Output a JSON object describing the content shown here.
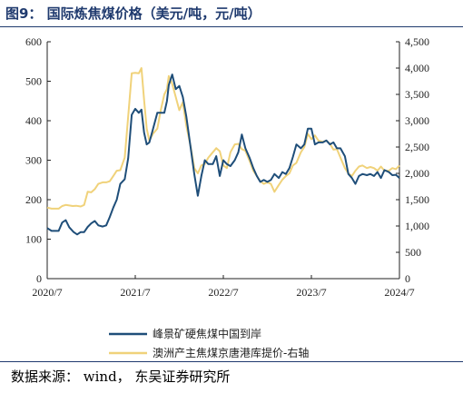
{
  "header": {
    "title": "图9：  国际炼焦煤价格（美元/吨，元/吨）"
  },
  "footer": {
    "source": "数据来源：  wind，  东吴证券研究所"
  },
  "chart_data": {
    "type": "line",
    "x_ticks": [
      "2020/7",
      "2021/7",
      "2022/7",
      "2023/7",
      "2024/7"
    ],
    "x_range": [
      2020.5,
      2024.5
    ],
    "y_left": {
      "ticks": [
        "0",
        "100",
        "200",
        "300",
        "400",
        "500",
        "600"
      ],
      "range": [
        0,
        600
      ]
    },
    "y_right": {
      "ticks": [
        "0",
        "500",
        "1,000",
        "1,500",
        "2,000",
        "2,500",
        "3,000",
        "3,500",
        "4,000",
        "4,500"
      ],
      "range": [
        0,
        4500
      ]
    },
    "grid": false,
    "legend_position": "bottom",
    "series": [
      {
        "name": "峰景矿硬焦煤中国到岸",
        "axis": "left",
        "color": "#1f4e79",
        "points": [
          [
            2020.5,
            128
          ],
          [
            2020.55,
            121
          ],
          [
            2020.63,
            121
          ],
          [
            2020.67,
            142
          ],
          [
            2020.71,
            148
          ],
          [
            2020.75,
            130
          ],
          [
            2020.8,
            118
          ],
          [
            2020.84,
            112
          ],
          [
            2020.88,
            118
          ],
          [
            2020.92,
            118
          ],
          [
            2020.96,
            131
          ],
          [
            2021.0,
            140
          ],
          [
            2021.04,
            146
          ],
          [
            2021.08,
            135
          ],
          [
            2021.13,
            132
          ],
          [
            2021.17,
            135
          ],
          [
            2021.21,
            156
          ],
          [
            2021.25,
            180
          ],
          [
            2021.29,
            200
          ],
          [
            2021.33,
            240
          ],
          [
            2021.38,
            252
          ],
          [
            2021.42,
            305
          ],
          [
            2021.46,
            415
          ],
          [
            2021.5,
            430
          ],
          [
            2021.54,
            420
          ],
          [
            2021.57,
            428
          ],
          [
            2021.6,
            370
          ],
          [
            2021.63,
            340
          ],
          [
            2021.66,
            345
          ],
          [
            2021.7,
            378
          ],
          [
            2021.75,
            420
          ],
          [
            2021.79,
            420
          ],
          [
            2021.83,
            420
          ],
          [
            2021.86,
            450
          ],
          [
            2021.88,
            490
          ],
          [
            2021.92,
            517
          ],
          [
            2021.96,
            480
          ],
          [
            2022.0,
            488
          ],
          [
            2022.04,
            460
          ],
          [
            2022.08,
            410
          ],
          [
            2022.13,
            330
          ],
          [
            2022.17,
            265
          ],
          [
            2022.21,
            210
          ],
          [
            2022.25,
            260
          ],
          [
            2022.29,
            300
          ],
          [
            2022.33,
            290
          ],
          [
            2022.38,
            290
          ],
          [
            2022.42,
            310
          ],
          [
            2022.46,
            260
          ],
          [
            2022.5,
            300
          ],
          [
            2022.54,
            290
          ],
          [
            2022.58,
            285
          ],
          [
            2022.63,
            300
          ],
          [
            2022.67,
            320
          ],
          [
            2022.71,
            365
          ],
          [
            2022.75,
            330
          ],
          [
            2022.8,
            305
          ],
          [
            2022.84,
            280
          ],
          [
            2022.88,
            260
          ],
          [
            2022.92,
            245
          ],
          [
            2022.96,
            250
          ],
          [
            2023.0,
            245
          ],
          [
            2023.04,
            250
          ],
          [
            2023.08,
            265
          ],
          [
            2023.13,
            255
          ],
          [
            2023.17,
            270
          ],
          [
            2023.21,
            265
          ],
          [
            2023.25,
            280
          ],
          [
            2023.29,
            308
          ],
          [
            2023.33,
            340
          ],
          [
            2023.38,
            330
          ],
          [
            2023.42,
            340
          ],
          [
            2023.46,
            380
          ],
          [
            2023.5,
            380
          ],
          [
            2023.54,
            340
          ],
          [
            2023.58,
            345
          ],
          [
            2023.63,
            345
          ],
          [
            2023.67,
            350
          ],
          [
            2023.71,
            340
          ],
          [
            2023.75,
            345
          ],
          [
            2023.79,
            330
          ],
          [
            2023.83,
            330
          ],
          [
            2023.88,
            310
          ],
          [
            2023.92,
            265
          ],
          [
            2023.96,
            255
          ],
          [
            2024.0,
            240
          ],
          [
            2024.04,
            260
          ],
          [
            2024.08,
            265
          ],
          [
            2024.13,
            262
          ],
          [
            2024.17,
            265
          ],
          [
            2024.21,
            260
          ],
          [
            2024.25,
            270
          ],
          [
            2024.29,
            255
          ],
          [
            2024.33,
            275
          ],
          [
            2024.38,
            270
          ],
          [
            2024.42,
            262
          ],
          [
            2024.46,
            263
          ],
          [
            2024.5,
            255
          ]
        ]
      },
      {
        "name": "澳洲产主焦煤京唐港库提价-右轴",
        "axis": "right",
        "color": "#f0d27a",
        "points": [
          [
            2020.5,
            1350
          ],
          [
            2020.55,
            1330
          ],
          [
            2020.63,
            1330
          ],
          [
            2020.67,
            1380
          ],
          [
            2020.71,
            1400
          ],
          [
            2020.75,
            1390
          ],
          [
            2020.79,
            1380
          ],
          [
            2020.83,
            1385
          ],
          [
            2020.88,
            1370
          ],
          [
            2020.92,
            1400
          ],
          [
            2020.96,
            1650
          ],
          [
            2021.0,
            1640
          ],
          [
            2021.04,
            1700
          ],
          [
            2021.08,
            1800
          ],
          [
            2021.13,
            1830
          ],
          [
            2021.17,
            1830
          ],
          [
            2021.21,
            1850
          ],
          [
            2021.25,
            1950
          ],
          [
            2021.29,
            2050
          ],
          [
            2021.33,
            2060
          ],
          [
            2021.38,
            2300
          ],
          [
            2021.42,
            3080
          ],
          [
            2021.46,
            3900
          ],
          [
            2021.5,
            3910
          ],
          [
            2021.54,
            3900
          ],
          [
            2021.57,
            4000
          ],
          [
            2021.6,
            3400
          ],
          [
            2021.63,
            2850
          ],
          [
            2021.66,
            2620
          ],
          [
            2021.7,
            2750
          ],
          [
            2021.75,
            2850
          ],
          [
            2021.79,
            3200
          ],
          [
            2021.83,
            3500
          ],
          [
            2021.86,
            3600
          ],
          [
            2021.88,
            3850
          ],
          [
            2021.92,
            3700
          ],
          [
            2021.96,
            3450
          ],
          [
            2022.0,
            3200
          ],
          [
            2022.04,
            3350
          ],
          [
            2022.08,
            2900
          ],
          [
            2022.13,
            2500
          ],
          [
            2022.17,
            2100
          ],
          [
            2022.21,
            2000
          ],
          [
            2022.25,
            2150
          ],
          [
            2022.29,
            2180
          ],
          [
            2022.33,
            2300
          ],
          [
            2022.38,
            2400
          ],
          [
            2022.42,
            2480
          ],
          [
            2022.46,
            2420
          ],
          [
            2022.5,
            2150
          ],
          [
            2022.54,
            2100
          ],
          [
            2022.58,
            2400
          ],
          [
            2022.63,
            2550
          ],
          [
            2022.67,
            2560
          ],
          [
            2022.71,
            2460
          ],
          [
            2022.75,
            2430
          ],
          [
            2022.8,
            2230
          ],
          [
            2022.84,
            2050
          ],
          [
            2022.88,
            1950
          ],
          [
            2022.92,
            1850
          ],
          [
            2022.96,
            1800
          ],
          [
            2023.0,
            1830
          ],
          [
            2023.04,
            1800
          ],
          [
            2023.08,
            1650
          ],
          [
            2023.13,
            1780
          ],
          [
            2023.17,
            1880
          ],
          [
            2023.21,
            1950
          ],
          [
            2023.25,
            2000
          ],
          [
            2023.29,
            2150
          ],
          [
            2023.33,
            2200
          ],
          [
            2023.38,
            2400
          ],
          [
            2023.42,
            2500
          ],
          [
            2023.46,
            2750
          ],
          [
            2023.5,
            2650
          ],
          [
            2023.54,
            2720
          ],
          [
            2023.58,
            2620
          ],
          [
            2023.63,
            2600
          ],
          [
            2023.67,
            2620
          ],
          [
            2023.71,
            2560
          ],
          [
            2023.75,
            2450
          ],
          [
            2023.79,
            2460
          ],
          [
            2023.83,
            2300
          ],
          [
            2023.88,
            2100
          ],
          [
            2023.92,
            2000
          ],
          [
            2023.96,
            1950
          ],
          [
            2024.0,
            2050
          ],
          [
            2024.04,
            2130
          ],
          [
            2024.08,
            2150
          ],
          [
            2024.13,
            2100
          ],
          [
            2024.17,
            2120
          ],
          [
            2024.21,
            2100
          ],
          [
            2024.25,
            2050
          ],
          [
            2024.29,
            2130
          ],
          [
            2024.33,
            2050
          ],
          [
            2024.38,
            2050
          ],
          [
            2024.42,
            2100
          ],
          [
            2024.46,
            2080
          ],
          [
            2024.5,
            2150
          ]
        ]
      }
    ]
  }
}
